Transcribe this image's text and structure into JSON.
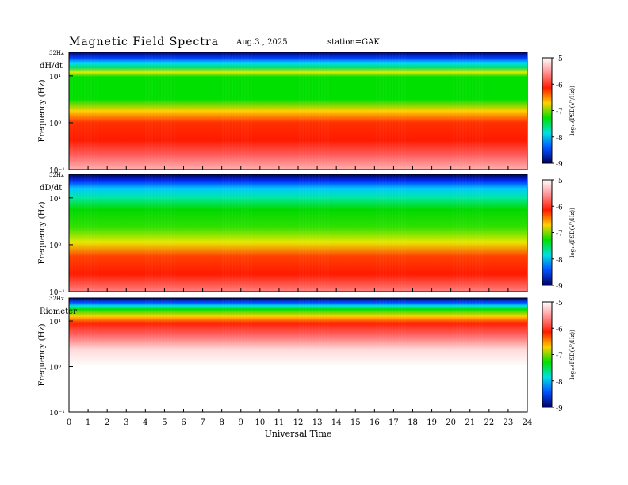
{
  "header": {
    "title": "Magnetic  Field  Spectra",
    "date": "Aug.3  ,  2025",
    "station": "station=GAK"
  },
  "colorbar": {
    "label": "log₁₀(PSD(V²/Hz))",
    "ticks": [
      "-5",
      "-6",
      "-7",
      "-8",
      "-9"
    ],
    "colors": [
      "#ffffff",
      "#ff9090",
      "#ff1a00",
      "#ffd000",
      "#00e000",
      "#00e0e0",
      "#0050ff",
      "#000060"
    ]
  },
  "chart_data": [
    {
      "type": "heatmap",
      "panel": "dH/dt",
      "ylabel": "Frequency  (Hz)",
      "top_tick": "32Hz",
      "y_ticks": [
        "10¹",
        "10⁰",
        "10⁻¹"
      ],
      "x": [
        0,
        24
      ],
      "clim": [
        -9,
        -5
      ]
    },
    {
      "type": "heatmap",
      "panel": "dD/dt",
      "ylabel": "Frequency  (Hz)",
      "top_tick": "32Hz",
      "y_ticks": [
        "10¹",
        "10⁰",
        "10⁻¹"
      ],
      "x": [
        0,
        24
      ],
      "clim": [
        -9,
        -5
      ]
    },
    {
      "type": "heatmap",
      "panel": "Riometer",
      "ylabel": "Frequency  (Hz)",
      "top_tick": "32Hz",
      "y_ticks": [
        "10¹",
        "10⁰",
        "10⁻¹"
      ],
      "x": [
        0,
        24
      ],
      "clim": [
        -9,
        -5
      ],
      "xlabel": "Universal  Time",
      "x_ticks": [
        "0",
        "1",
        "2",
        "3",
        "4",
        "5",
        "6",
        "7",
        "8",
        "9",
        "10",
        "11",
        "12",
        "13",
        "14",
        "15",
        "16",
        "17",
        "18",
        "19",
        "20",
        "21",
        "22",
        "23",
        "24"
      ]
    }
  ]
}
